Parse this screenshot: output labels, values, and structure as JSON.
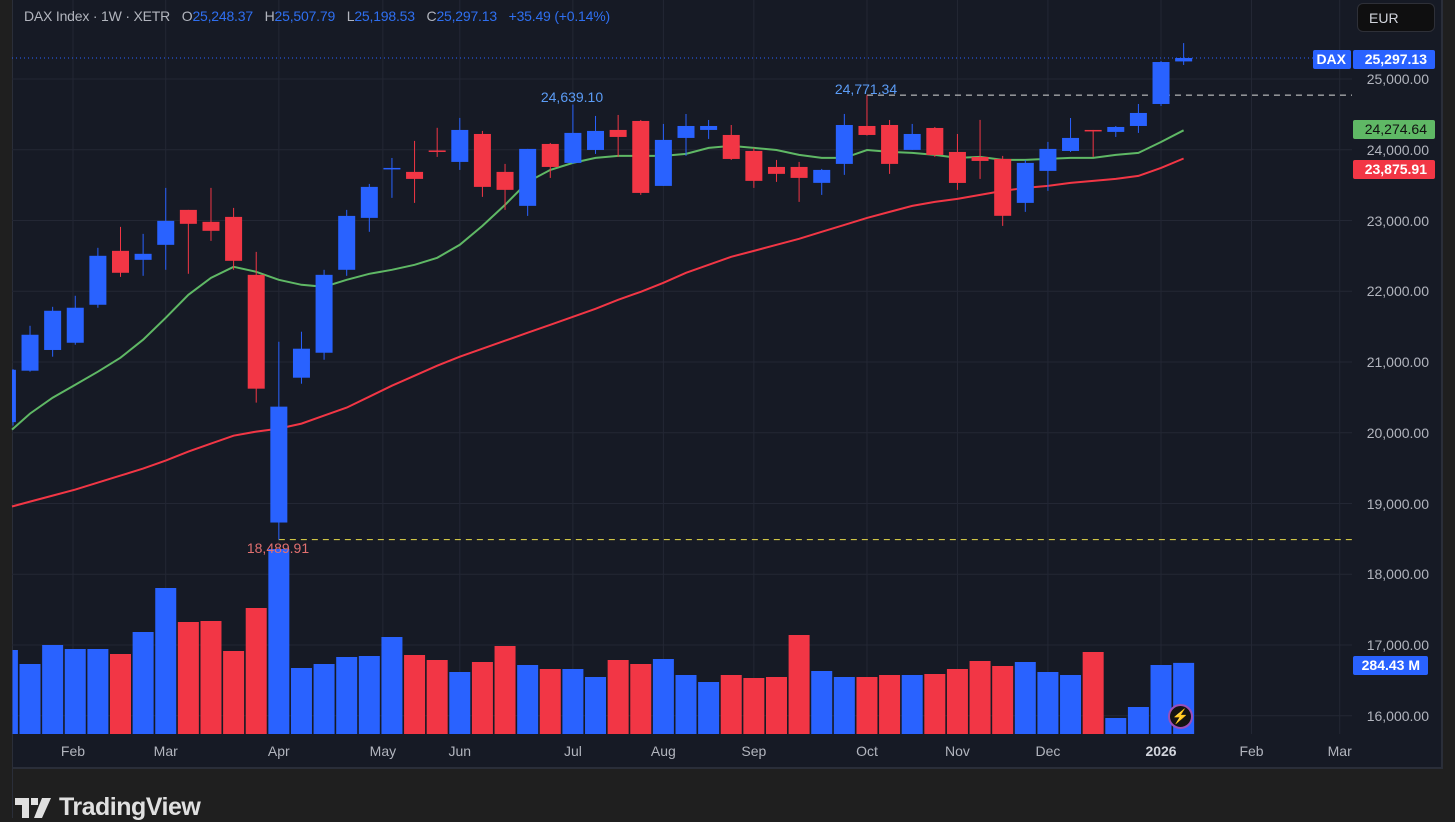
{
  "header": {
    "symbol": "DAX Index",
    "interval": "1W",
    "exchange": "XETR",
    "separator": "·",
    "open_label": "O",
    "open": "25,248.37",
    "high_label": "H",
    "high": "25,507.79",
    "low_label": "L",
    "low": "25,198.53",
    "close_label": "C",
    "close": "25,297.13",
    "change": "+35.49 (+0.14%)"
  },
  "currency_button": "EUR",
  "price_tags": {
    "symbol_tag": "DAX",
    "last_price": "25,297.13",
    "ma_fast": "24,274.64",
    "ma_slow": "23,875.91",
    "volume": "284.43 M"
  },
  "annotations": {
    "high_1": "24,639.10",
    "high_2": "24,771.34",
    "low_1": "18,489.91"
  },
  "footer": {
    "brand": "TradingView"
  },
  "colors": {
    "up": "#2962ff",
    "down": "#f23645",
    "ma_fast": "#5fb865",
    "ma_slow": "#f23645",
    "hl_line": "#e8dc4a",
    "background": "#161a25"
  },
  "chart_data": {
    "type": "candlestick",
    "title": "DAX Index · 1W · XETR",
    "ylabel": "EUR",
    "ylim": [
      15800,
      25800
    ],
    "y_ticks": [
      25000,
      24000,
      23000,
      22000,
      21000,
      20000,
      19000,
      18000,
      17000,
      16000
    ],
    "y_tick_labels": [
      "25,000.00",
      "24,000.00",
      "23,000.00",
      "22,000.00",
      "21,000.00",
      "20,000.00",
      "19,000.00",
      "18,000.00",
      "17,000.00",
      "16,000.00"
    ],
    "x_labels": [
      {
        "label": "Feb",
        "week_index": 2.9
      },
      {
        "label": "Mar",
        "week_index": 7.0
      },
      {
        "label": "Apr",
        "week_index": 12.0
      },
      {
        "label": "May",
        "week_index": 16.6
      },
      {
        "label": "Jun",
        "week_index": 20.0
      },
      {
        "label": "Jul",
        "week_index": 25.0
      },
      {
        "label": "Aug",
        "week_index": 29.0
      },
      {
        "label": "Sep",
        "week_index": 33.0
      },
      {
        "label": "Oct",
        "week_index": 38.0
      },
      {
        "label": "Nov",
        "week_index": 42.0
      },
      {
        "label": "Dec",
        "week_index": 46.0
      },
      {
        "label": "2026",
        "week_index": 51.0,
        "bold": true
      },
      {
        "label": "Feb",
        "week_index": 55.0
      },
      {
        "label": "Mar",
        "week_index": 58.9
      }
    ],
    "ohlc": [
      [
        20150,
        20900,
        20100,
        20890
      ],
      [
        20877,
        21512,
        20863,
        21385
      ],
      [
        21170,
        21780,
        21075,
        21724
      ],
      [
        21272,
        21936,
        21244,
        21767
      ],
      [
        21809,
        22614,
        21767,
        22501
      ],
      [
        22571,
        22910,
        22204,
        22261
      ],
      [
        22444,
        22811,
        22218,
        22529
      ],
      [
        22656,
        23461,
        22303,
        22995
      ],
      [
        23150,
        23150,
        22247,
        22953
      ],
      [
        22981,
        23461,
        22712,
        22854
      ],
      [
        23051,
        23178,
        22303,
        22430
      ],
      [
        22232,
        22557,
        20425,
        20623
      ],
      [
        18731,
        21286,
        18489.91,
        20369
      ],
      [
        20778,
        21428,
        20693,
        21188
      ],
      [
        21131,
        22303,
        21032,
        22232
      ],
      [
        22303,
        23150,
        22218,
        23065
      ],
      [
        23037,
        23517,
        22840,
        23475
      ],
      [
        23729,
        23884,
        23320,
        23743
      ],
      [
        23687,
        24125,
        23249,
        23588
      ],
      [
        23990,
        24310,
        23899,
        23970
      ],
      [
        23828,
        24450,
        23715,
        24280
      ],
      [
        24223,
        24266,
        23334,
        23475
      ],
      [
        23687,
        23800,
        23150,
        23433
      ],
      [
        23207,
        24012,
        23065,
        24012
      ],
      [
        24082,
        24096,
        23602,
        23757
      ],
      [
        23814,
        24639.1,
        23800,
        24238
      ],
      [
        23997,
        24478,
        23941,
        24266
      ],
      [
        24280,
        24492,
        23899,
        24181
      ],
      [
        24407,
        24421,
        23362,
        23390
      ],
      [
        23489,
        24365,
        23489,
        24139
      ],
      [
        24167,
        24506,
        23913,
        24336
      ],
      [
        24280,
        24421,
        24153,
        24336
      ],
      [
        24209,
        24350,
        23856,
        23870
      ],
      [
        23983,
        24026,
        23461,
        23560
      ],
      [
        23757,
        23856,
        23546,
        23659
      ],
      [
        23757,
        23828,
        23263,
        23602
      ],
      [
        23532,
        23729,
        23362,
        23715
      ],
      [
        23800,
        24506,
        23645,
        24350
      ],
      [
        24336,
        24771.34,
        24200,
        24209
      ],
      [
        24350,
        24421,
        23659,
        23800
      ],
      [
        23998,
        24365,
        23998,
        24223
      ],
      [
        24308,
        24322,
        23899,
        23927
      ],
      [
        23969,
        24223,
        23433,
        23531
      ],
      [
        23898,
        24422,
        23588,
        23842
      ],
      [
        23870,
        23913,
        22924,
        23066
      ],
      [
        23249,
        23856,
        23122,
        23814
      ],
      [
        23701,
        24111,
        23419,
        24012
      ],
      [
        23983,
        24449,
        23969,
        24167
      ],
      [
        24280,
        24280,
        23899,
        24266
      ],
      [
        24252,
        24336,
        24181,
        24322
      ],
      [
        24336,
        24647,
        24238,
        24520
      ],
      [
        24647,
        25254,
        24619,
        25240
      ],
      [
        25248.37,
        25507.79,
        25198.53,
        25297.13
      ]
    ],
    "volume_millions": [
      336,
      280,
      356,
      340,
      340,
      320,
      408,
      584,
      448,
      452,
      332,
      504,
      740,
      264,
      280,
      308,
      312,
      388,
      316,
      296,
      248,
      288,
      352,
      276,
      260,
      260,
      228,
      296,
      280,
      300,
      236,
      208,
      236,
      224,
      228,
      396,
      252,
      228,
      228,
      236,
      236,
      240,
      260,
      292,
      272,
      288,
      248,
      236,
      328,
      64,
      108,
      276,
      284.43
    ],
    "ma_fast": [
      20044,
      20270,
      20496,
      20679,
      20863,
      21061,
      21315,
      21625,
      21950,
      22190,
      22345,
      22275,
      22162,
      22091,
      22063,
      22162,
      22247,
      22303,
      22374,
      22473,
      22656,
      22924,
      23221,
      23546,
      23715,
      23814,
      23885,
      23913,
      23913,
      23913,
      23941,
      24026,
      24054,
      24026,
      23997,
      23927,
      23885,
      23885,
      23997,
      23969,
      23955,
      23927,
      23885,
      23899,
      23856,
      23856,
      23870,
      23885,
      23885,
      23927,
      23955,
      24110,
      24274.64
    ],
    "ma_slow": [
      18957,
      19027,
      19112,
      19197,
      19296,
      19394,
      19493,
      19606,
      19733,
      19846,
      19959,
      20016,
      20058,
      20129,
      20242,
      20355,
      20510,
      20665,
      20806,
      20948,
      21075,
      21188,
      21301,
      21414,
      21526,
      21639,
      21752,
      21879,
      21992,
      22120,
      22261,
      22374,
      22487,
      22571,
      22656,
      22741,
      22840,
      22938,
      23037,
      23122,
      23207,
      23263,
      23306,
      23362,
      23419,
      23461,
      23489,
      23532,
      23560,
      23588,
      23630,
      23743,
      23875.91
    ],
    "high_marker_levels": [
      24639.1,
      24771.34
    ],
    "low_marker_level": 18489.91
  }
}
